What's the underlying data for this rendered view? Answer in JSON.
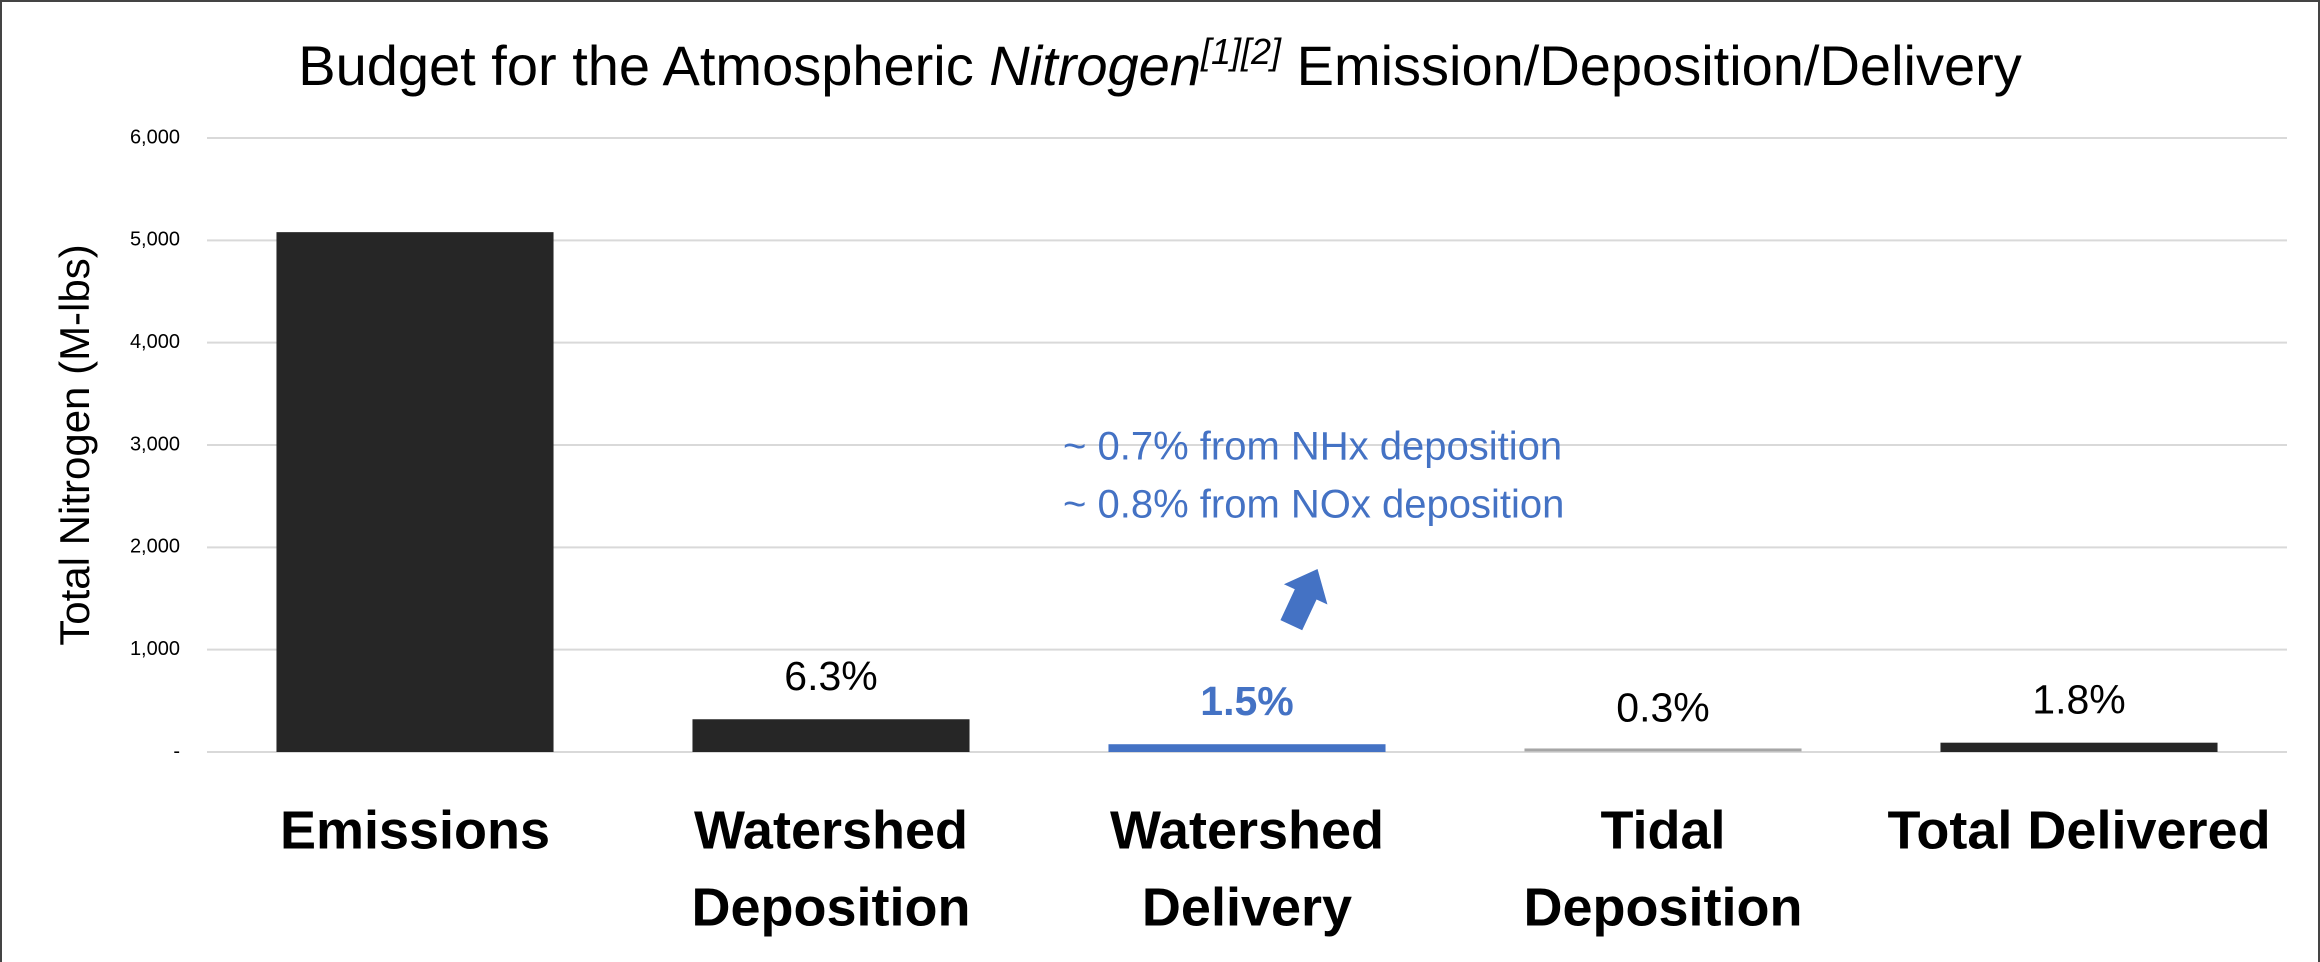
{
  "chart_data": {
    "type": "bar",
    "title": {
      "before": "Budget for the Atmospheric",
      "italic": "Nitrogen",
      "superscript": "[1][2]",
      "after": "Emission/Deposition/Delivery"
    },
    "y_label": "Total Nitrogen (M-lbs)",
    "categories": [
      [
        "Emissions"
      ],
      [
        "Watershed",
        "Deposition"
      ],
      [
        "Watershed",
        "Delivery"
      ],
      [
        "Tidal",
        "Deposition"
      ],
      [
        "Total Delivered"
      ]
    ],
    "values": [
      5080,
      320,
      76,
      15,
      91
    ],
    "colors": [
      "#262626",
      "#262626",
      "#4472c4",
      "#a6a6a6",
      "#262626"
    ],
    "bar_labels": [
      null,
      "6.3%",
      "1.5%",
      "0.3%",
      "1.8%"
    ],
    "bar_label_colors": [
      null,
      "#000000",
      "#4472c4",
      "#000000",
      "#000000"
    ],
    "annotations": [
      "~ 0.7% from NHx deposition",
      "~ 0.8% from NOx deposition"
    ],
    "annotation_color": "#4472c4",
    "ylim": [
      0,
      6000
    ],
    "yticks": [
      {
        "value": 0,
        "label": "-"
      },
      {
        "value": 1000,
        "label": "1,000"
      },
      {
        "value": 2000,
        "label": "2,000"
      },
      {
        "value": 3000,
        "label": "3,000"
      },
      {
        "value": 4000,
        "label": "4,000"
      },
      {
        "value": 5000,
        "label": "5,000"
      },
      {
        "value": 6000,
        "label": "6,000"
      }
    ],
    "grid": true
  }
}
